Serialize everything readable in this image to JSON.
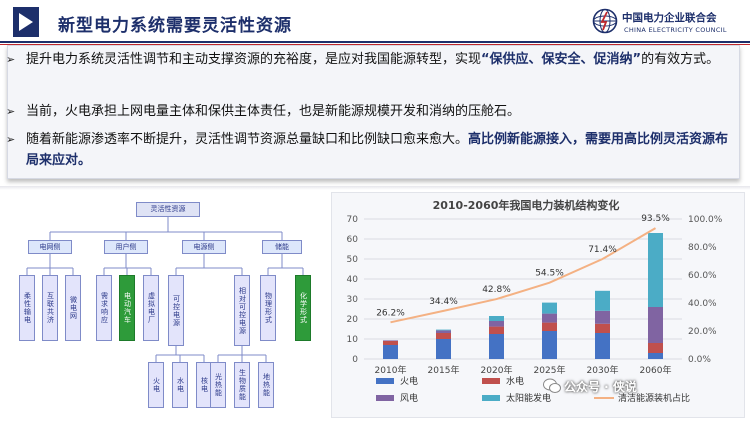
{
  "header": {
    "title": "新型电力系统需要灵活性资源",
    "org_name": "中国电力企业联合会",
    "org_name_en": "CHINA ELECTRICITY COUNCIL"
  },
  "bullets": [
    {
      "parts": [
        {
          "text": "提升电力系统灵活性调节和主动支撑资源的充裕度，是应对我国能源转型，实现",
          "bold": false
        },
        {
          "text": "“保供应、保安全、促消纳”",
          "bold": true
        },
        {
          "text": "的有效方式。",
          "bold": false
        }
      ]
    },
    {
      "parts": [
        {
          "text": "当前，火电承担上网电量主体和保供主体责任，也是新能源规模开发和消纳的压舱石。",
          "bold": false
        }
      ]
    },
    {
      "parts": [
        {
          "text": "随着新能源渗透率不断提升，灵活性调节资源总量缺口和比例缺口愈来愈大。",
          "bold": false
        },
        {
          "text": "高比例新能源接入，需要用高比例灵活资源布局来应对。",
          "bold": true
        }
      ]
    }
  ],
  "org_chart": {
    "root": "灵活性资源",
    "level2": [
      "电网侧",
      "用户侧",
      "电源侧",
      "储能"
    ],
    "grid_side": [
      "柔性输电",
      "互联共济",
      "微电网"
    ],
    "user_side": [
      "需求响应",
      "电动汽车",
      "虚拟电厂"
    ],
    "source_side": [
      "可控电源",
      "相对可控电源"
    ],
    "storage": [
      "物理形式",
      "化学形式"
    ],
    "controllable": [
      "火电",
      "水电",
      "核电"
    ],
    "relatively_controllable": [
      "光热能",
      "生物质能",
      "地热能"
    ]
  },
  "chart_data": {
    "type": "bar",
    "title": "2010-2060年我国电力装机结构变化",
    "categories": [
      "2010年",
      "2015年",
      "2020年",
      "2025年",
      "2030年",
      "2060年"
    ],
    "series": [
      {
        "name": "火电",
        "color": "#4472c4",
        "values": [
          7,
          10,
          12.5,
          14,
          13,
          3
        ]
      },
      {
        "name": "水电",
        "color": "#c0504d",
        "values": [
          2,
          3,
          3.7,
          4.2,
          4.6,
          5
        ]
      },
      {
        "name": "风电",
        "color": "#8064a2",
        "values": [
          0.3,
          1.3,
          2.8,
          4.5,
          6.5,
          18
        ]
      },
      {
        "name": "太阳能发电",
        "color": "#4bacc6",
        "values": [
          0,
          0.4,
          2.5,
          5.5,
          10,
          37
        ]
      }
    ],
    "line": {
      "name": "清洁能源装机占比",
      "color": "#f4b183",
      "values": [
        26.2,
        34.4,
        42.8,
        54.5,
        71.4,
        93.5
      ],
      "labels": [
        "26.2%",
        "34.4%",
        "42.8%",
        "54.5%",
        "71.4%",
        "93.5%"
      ]
    },
    "y_left": {
      "min": 0,
      "max": 70,
      "ticks": [
        "0",
        "10",
        "20",
        "30",
        "40",
        "50",
        "60",
        "70"
      ]
    },
    "y_right": {
      "min": 0,
      "max": 100,
      "ticks": [
        "0.0%",
        "20.0%",
        "40.0%",
        "60.0%",
        "80.0%",
        "100.0%"
      ]
    },
    "grid": true,
    "legend_position": "bottom"
  },
  "watermark": "公众号 · 侠说",
  "colors": {
    "brand": "#1d2f6b",
    "accent_red": "#c0282d",
    "green_node": "#2e9b3a"
  }
}
